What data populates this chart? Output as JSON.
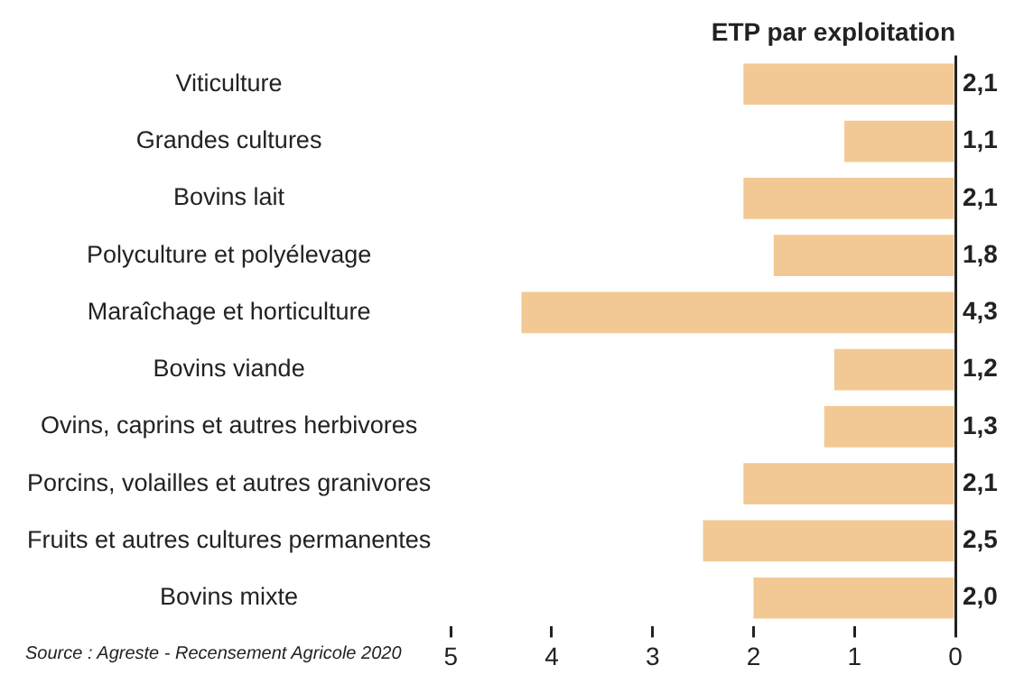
{
  "chart_data": {
    "type": "bar",
    "orientation": "horizontal",
    "title": "ETP par exploitation",
    "categories": [
      "Viticulture",
      "Grandes cultures",
      "Bovins lait",
      "Polyculture et polyélevage",
      "Maraîchage et horticulture",
      "Bovins viande",
      "Ovins, caprins et autres herbivores",
      "Porcins, volailles et autres granivores",
      "Fruits et autres cultures permanentes",
      "Bovins mixte"
    ],
    "values": [
      2.1,
      1.1,
      2.1,
      1.8,
      4.3,
      1.2,
      1.3,
      2.1,
      2.5,
      2.0
    ],
    "value_labels": [
      "2,1",
      "1,1",
      "2,1",
      "1,8",
      "4,3",
      "1,2",
      "1,3",
      "2,1",
      "2,5",
      "2,0"
    ],
    "color": "#f2c994",
    "xlim": [
      5,
      0
    ],
    "xticks": [
      5,
      4,
      3,
      2,
      1,
      0
    ],
    "grid": false,
    "legend": false,
    "annotations": [
      "Source : Agreste - Recensement Agricole 2020"
    ]
  }
}
